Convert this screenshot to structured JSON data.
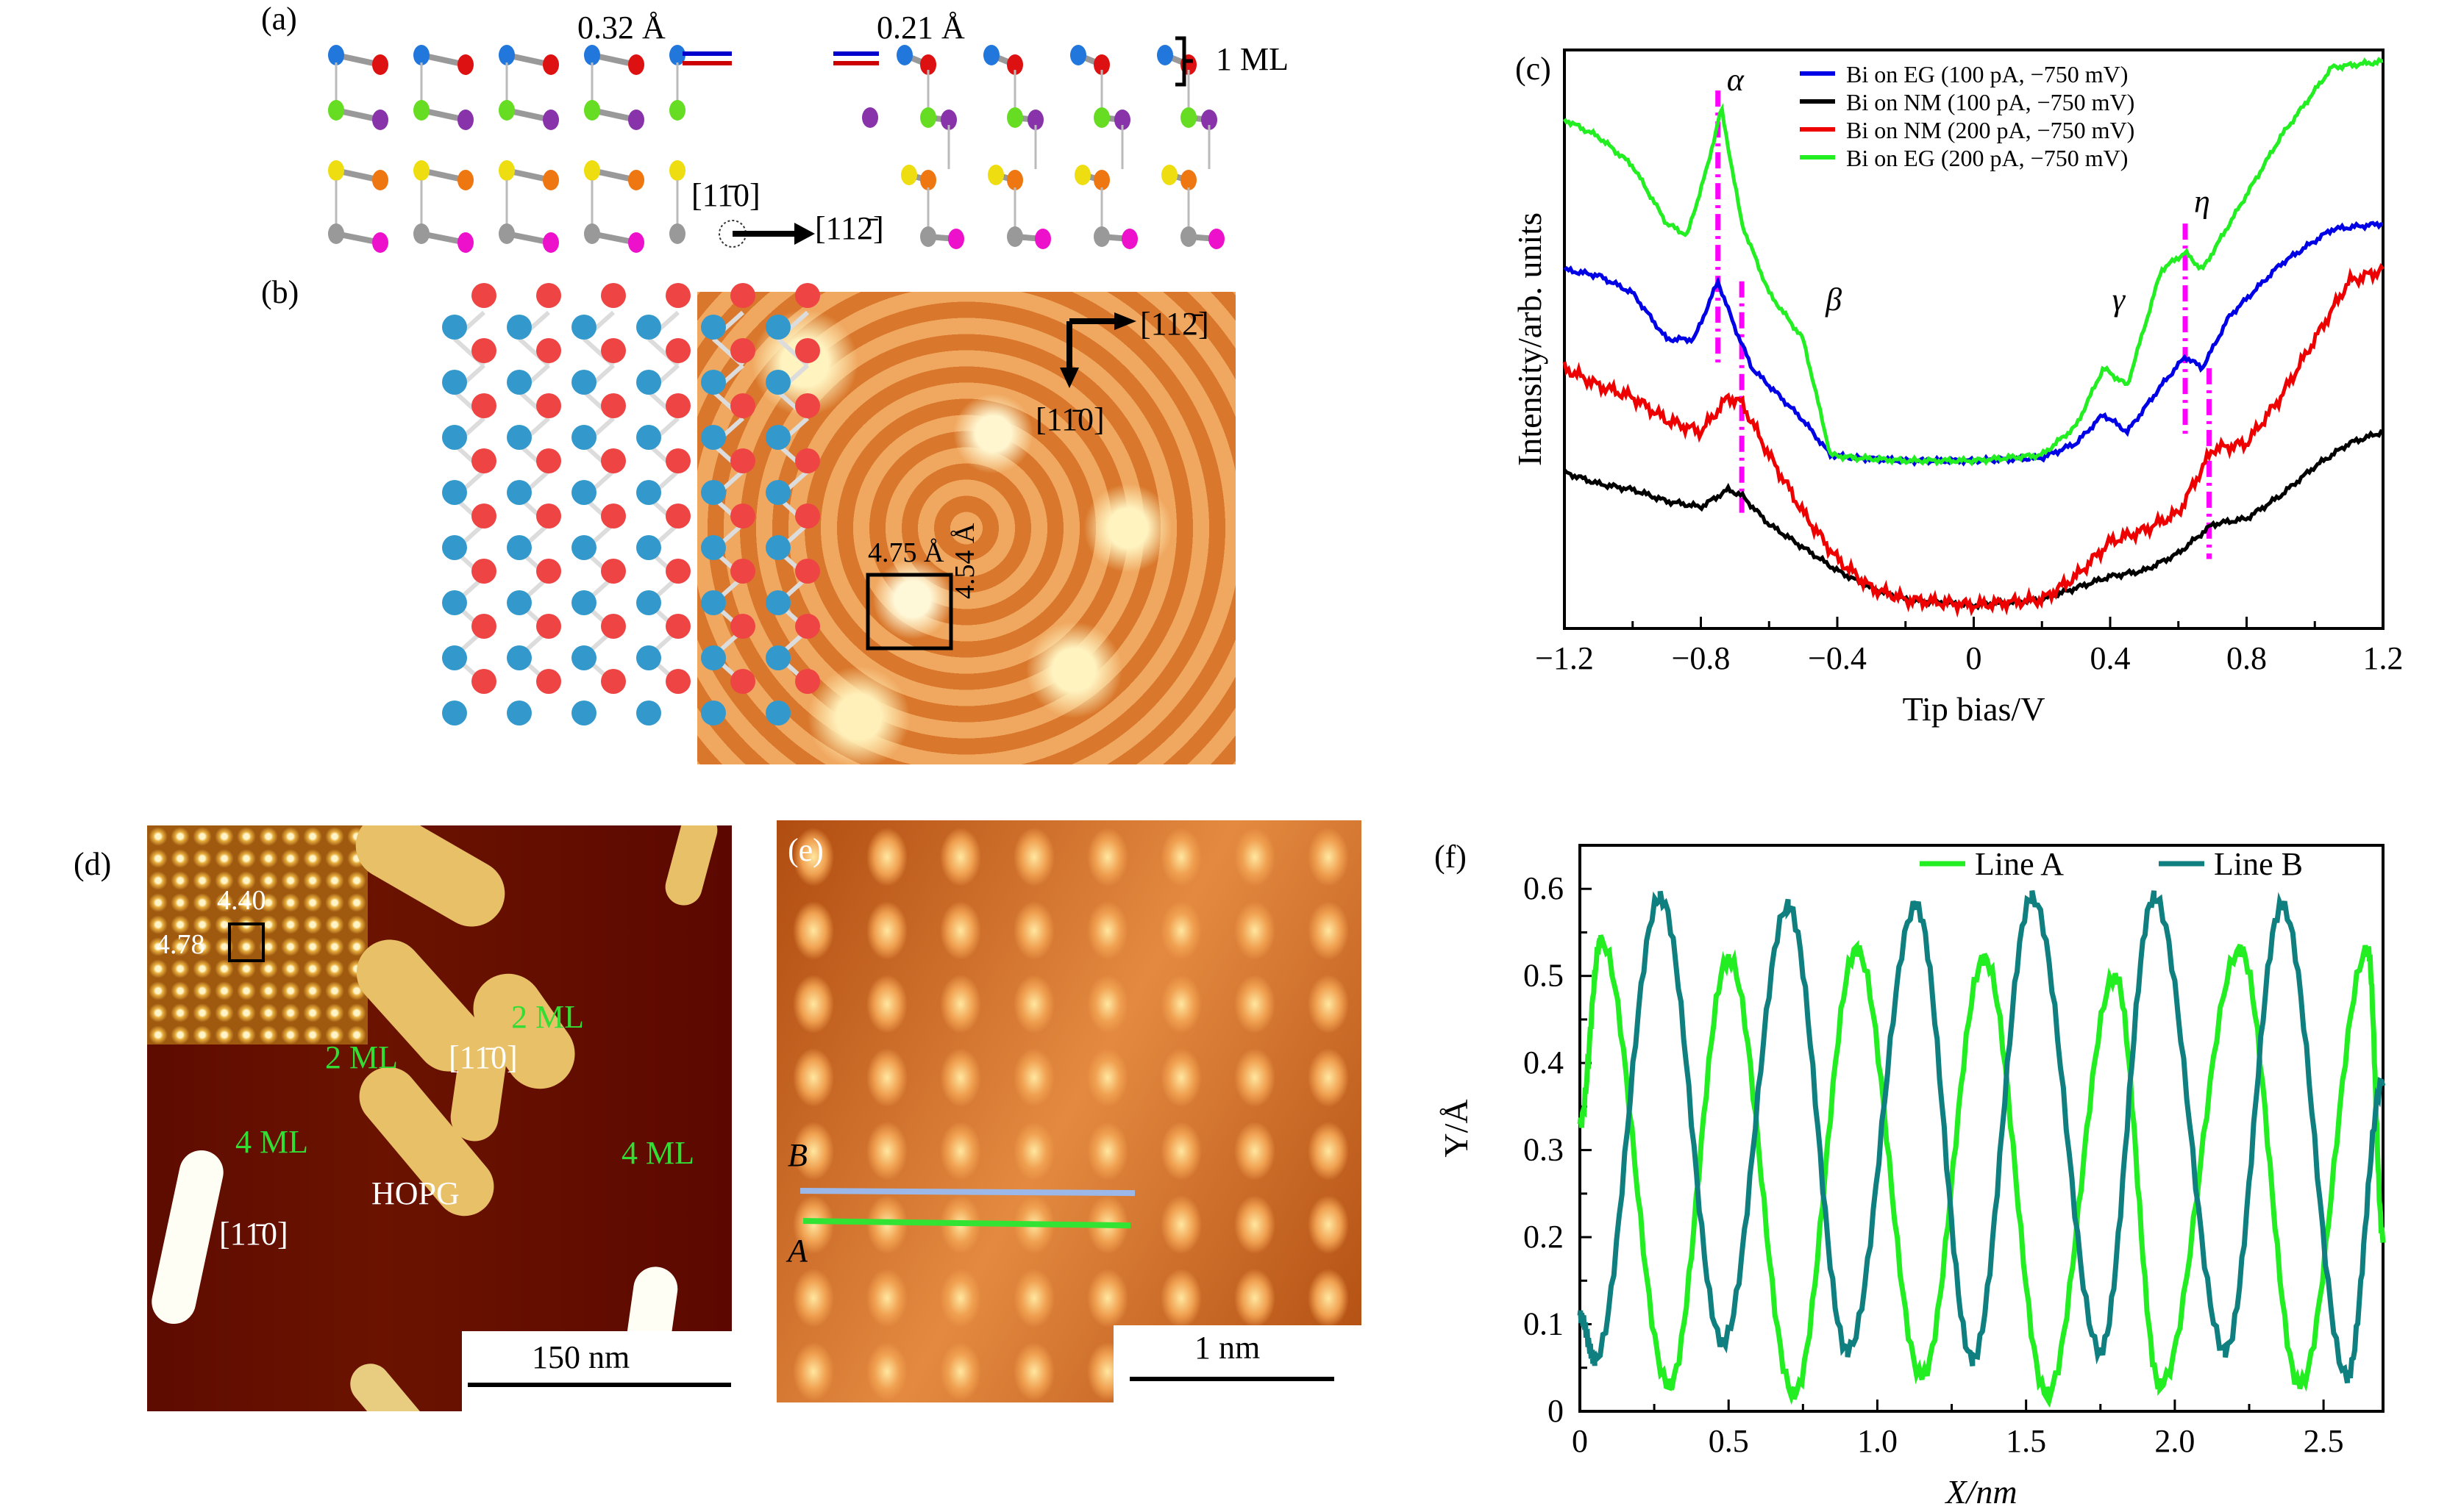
{
  "panels": {
    "a": {
      "label": "(a)",
      "left_gap": "0.32 Å",
      "right_gap": "0.21 Å",
      "ml_label": "1 ML",
      "dir_up": "[11̄0]",
      "dir_right": "[112̄]"
    },
    "b": {
      "label": "(b)",
      "dir_right": "[112̄]",
      "dir_down": "[11̄0]",
      "cell_width": "4.75 Å",
      "cell_height": "4.54 Å"
    },
    "d": {
      "label": "(d)",
      "inset_a": "4.40",
      "inset_b": "4.78",
      "islands": [
        "2 ML",
        "2 ML",
        "4 ML",
        "4 ML"
      ],
      "dir1": "[11̄0]",
      "dir2": "[11̄0]",
      "substrate": "HOPG",
      "scale_bar": "150 nm"
    },
    "e": {
      "label": "(e)",
      "line_b": "B",
      "line_a": "A",
      "scale_bar": "1 nm",
      "line_b_color": "#9bb8e8",
      "line_a_color": "#33e333"
    }
  },
  "chart_data": [
    {
      "panel": "(c)",
      "type": "line",
      "title": "",
      "xlabel": "Tip bias/V",
      "ylabel": "Intensity/arb. units",
      "xlim": [
        -1.2,
        1.2
      ],
      "ylim": [
        0,
        1
      ],
      "xticks": [
        -1.2,
        -0.8,
        -0.4,
        0,
        0.4,
        0.8,
        1.2
      ],
      "xtick_labels": [
        "−1.2",
        "−0.8",
        "−0.4",
        "0",
        "0.4",
        "0.8",
        "1.2"
      ],
      "legend_position": "top-center",
      "series": [
        {
          "name": "Bi on EG (100 pA, −750 mV)",
          "color": "#0000e6",
          "x": [
            -1.2,
            -1.1,
            -1.0,
            -0.9,
            -0.82,
            -0.75,
            -0.7,
            -0.65,
            -0.6,
            -0.5,
            -0.42,
            -0.35,
            -0.2,
            0,
            0.2,
            0.3,
            0.38,
            0.45,
            0.55,
            0.62,
            0.67,
            0.75,
            0.9,
            1.05,
            1.2
          ],
          "y": [
            0.62,
            0.61,
            0.58,
            0.5,
            0.5,
            0.6,
            0.52,
            0.45,
            0.42,
            0.36,
            0.3,
            0.295,
            0.29,
            0.29,
            0.295,
            0.32,
            0.37,
            0.34,
            0.42,
            0.47,
            0.45,
            0.54,
            0.63,
            0.69,
            0.7
          ]
        },
        {
          "name": "Bi on NM (100 pA, −750 mV)",
          "color": "#000000",
          "x": [
            -1.2,
            -1.1,
            -1.0,
            -0.9,
            -0.8,
            -0.72,
            -0.68,
            -0.6,
            -0.5,
            -0.4,
            -0.3,
            -0.2,
            0,
            0.2,
            0.3,
            0.4,
            0.5,
            0.6,
            0.7,
            0.8,
            0.9,
            1.0,
            1.1,
            1.2
          ],
          "y": [
            0.27,
            0.25,
            0.24,
            0.22,
            0.21,
            0.24,
            0.23,
            0.18,
            0.14,
            0.1,
            0.07,
            0.05,
            0.04,
            0.05,
            0.07,
            0.09,
            0.1,
            0.13,
            0.18,
            0.19,
            0.23,
            0.28,
            0.32,
            0.34
          ]
        },
        {
          "name": "Bi on NM (200 pA, −750 mV)",
          "color": "#ee0000",
          "x": [
            -1.2,
            -1.1,
            -1.0,
            -0.9,
            -0.8,
            -0.72,
            -0.68,
            -0.6,
            -0.5,
            -0.4,
            -0.3,
            -0.2,
            0,
            0.2,
            0.3,
            0.4,
            0.5,
            0.6,
            0.7,
            0.8,
            0.9,
            1.0,
            1.1,
            1.2
          ],
          "y": [
            0.45,
            0.42,
            0.4,
            0.36,
            0.34,
            0.4,
            0.39,
            0.3,
            0.2,
            0.12,
            0.07,
            0.05,
            0.04,
            0.05,
            0.09,
            0.15,
            0.17,
            0.2,
            0.31,
            0.32,
            0.4,
            0.5,
            0.6,
            0.62
          ]
        },
        {
          "name": "Bi on EG (200 pA, −750 mV)",
          "color": "#22ee22",
          "x": [
            -1.2,
            -1.1,
            -1.0,
            -0.9,
            -0.84,
            -0.78,
            -0.74,
            -0.68,
            -0.6,
            -0.5,
            -0.42,
            -0.35,
            -0.2,
            0,
            0.2,
            0.3,
            0.38,
            0.45,
            0.55,
            0.62,
            0.67,
            0.75,
            0.9,
            1.05,
            1.2
          ],
          "y": [
            0.88,
            0.85,
            0.8,
            0.7,
            0.68,
            0.8,
            0.9,
            0.7,
            0.58,
            0.5,
            0.3,
            0.295,
            0.29,
            0.29,
            0.3,
            0.35,
            0.45,
            0.42,
            0.62,
            0.65,
            0.62,
            0.7,
            0.85,
            0.97,
            0.98
          ]
        }
      ],
      "annotations": [
        {
          "text": "α",
          "x": -0.75
        },
        {
          "text": "β",
          "x": -0.46
        },
        {
          "text": "γ",
          "x": 0.38
        },
        {
          "text": "η",
          "x": 0.62
        }
      ],
      "dashed_markers": {
        "color": "#ff00ff",
        "x": [
          -0.75,
          -0.68,
          0.62,
          0.69
        ]
      }
    },
    {
      "panel": "(f)",
      "type": "line",
      "title": "",
      "xlabel": "X/nm",
      "ylabel": "Y/Å",
      "xlim": [
        0,
        2.7
      ],
      "ylim": [
        0,
        0.65
      ],
      "xticks": [
        0,
        0.5,
        1.0,
        1.5,
        2.0,
        2.5
      ],
      "xtick_labels": [
        "0",
        "0.5",
        "1.0",
        "1.5",
        "2.0",
        "2.5"
      ],
      "yticks": [
        0,
        0.1,
        0.2,
        0.3,
        0.4,
        0.5,
        0.6
      ],
      "ytick_labels": [
        "0",
        "0.1",
        "0.2",
        "0.3",
        "0.4",
        "0.5",
        "0.6"
      ],
      "legend_position": "top-right",
      "series": [
        {
          "name": "Line A",
          "color": "#22ee22",
          "peaks_x": [
            0.07,
            0.5,
            0.93,
            1.36,
            1.8,
            2.22,
            2.65
          ],
          "peaks_y": [
            0.54,
            0.52,
            0.53,
            0.52,
            0.5,
            0.53,
            0.53
          ],
          "troughs_x": [
            0.3,
            0.72,
            1.15,
            1.57,
            1.95,
            2.42
          ],
          "troughs_y": [
            0.03,
            0.02,
            0.04,
            0.02,
            0.03,
            0.03
          ]
        },
        {
          "name": "Line B",
          "color": "#0f7f7f",
          "peaks_x": [
            0.27,
            0.7,
            1.13,
            1.52,
            1.93,
            2.36
          ],
          "peaks_y": [
            0.59,
            0.58,
            0.58,
            0.59,
            0.59,
            0.58
          ],
          "troughs_x": [
            0.05,
            0.48,
            0.9,
            1.32,
            1.75,
            2.17,
            2.58
          ],
          "troughs_y": [
            0.06,
            0.08,
            0.07,
            0.06,
            0.07,
            0.07,
            0.04
          ]
        }
      ]
    }
  ]
}
